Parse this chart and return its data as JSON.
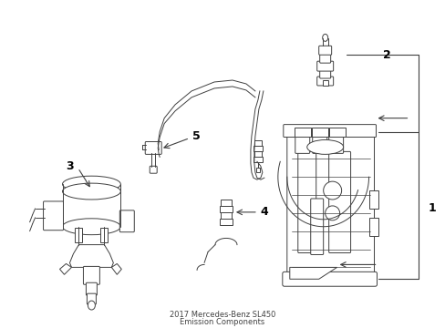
{
  "title": "2017 Mercedes-Benz SL450",
  "subtitle": "Emission Components",
  "bg_color": "#ffffff",
  "line_color": "#404040",
  "label_color": "#000000",
  "fig_width": 4.89,
  "fig_height": 3.6,
  "dpi": 100
}
